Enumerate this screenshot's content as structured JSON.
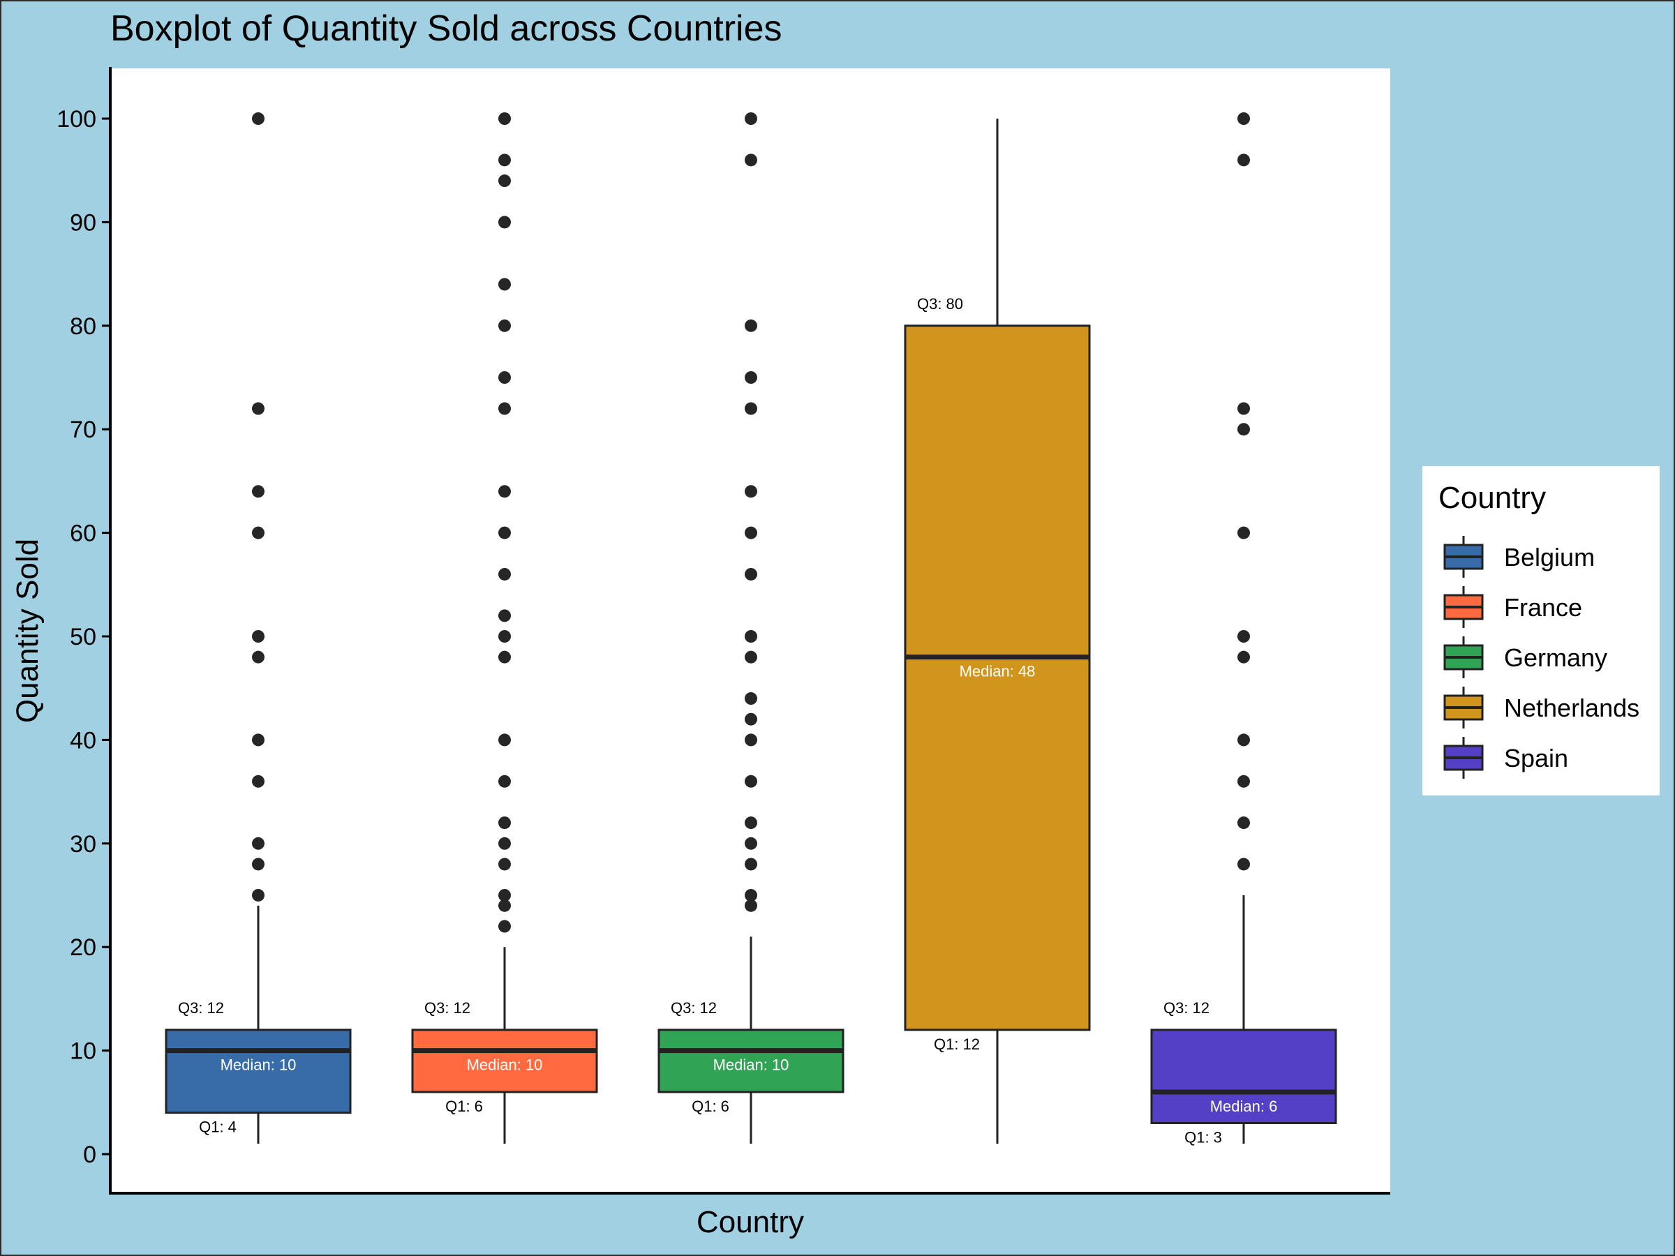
{
  "chart_data": {
    "type": "boxplot",
    "title": "Boxplot of Quantity Sold across Countries",
    "xlabel": "Country",
    "ylabel": "Quantity Sold",
    "ylim": [
      -4,
      105
    ],
    "yticks": [
      0,
      10,
      20,
      30,
      40,
      50,
      60,
      70,
      80,
      90,
      100
    ],
    "legend": {
      "title": "Country",
      "position": "right"
    },
    "background_color": "#a0d0e1",
    "panel_color": "#ffffff",
    "outline_color": "#222222",
    "series": [
      {
        "name": "Belgium",
        "color": "#386ca8",
        "min": 1,
        "q1": 4,
        "median": 10,
        "q3": 12,
        "max": 24,
        "q1_label": "Q1: 4",
        "median_label": "Median: 10",
        "q3_label": "Q3: 12",
        "outliers": [
          25,
          28,
          30,
          36,
          40,
          48,
          50,
          60,
          64,
          72,
          100
        ]
      },
      {
        "name": "France",
        "color": "#ff6a40",
        "min": 1,
        "q1": 6,
        "median": 10,
        "q3": 12,
        "max": 20,
        "q1_label": "Q1: 6",
        "median_label": "Median: 10",
        "q3_label": "Q3: 12",
        "outliers": [
          22,
          24,
          25,
          28,
          30,
          32,
          36,
          40,
          48,
          50,
          52,
          56,
          60,
          64,
          72,
          75,
          80,
          84,
          90,
          94,
          96,
          100
        ]
      },
      {
        "name": "Germany",
        "color": "#31a354",
        "min": 1,
        "q1": 6,
        "median": 10,
        "q3": 12,
        "max": 21,
        "q1_label": "Q1: 6",
        "median_label": "Median: 10",
        "q3_label": "Q3: 12",
        "outliers": [
          24,
          25,
          28,
          30,
          32,
          36,
          40,
          42,
          44,
          48,
          50,
          56,
          60,
          64,
          72,
          75,
          80,
          96,
          100
        ]
      },
      {
        "name": "Netherlands",
        "color": "#d1951d",
        "min": 1,
        "q1": 12,
        "median": 48,
        "q3": 80,
        "max": 100,
        "q1_label": "Q1: 12",
        "median_label": "Median: 48",
        "q3_label": "Q3: 80",
        "outliers": []
      },
      {
        "name": "Spain",
        "color": "#5440c6",
        "min": 1,
        "q1": 3,
        "median": 6,
        "q3": 12,
        "max": 25,
        "q1_label": "Q1: 3",
        "median_label": "Median: 6",
        "q3_label": "Q3: 12",
        "outliers": [
          28,
          32,
          36,
          40,
          48,
          50,
          60,
          70,
          72,
          96,
          100
        ]
      }
    ]
  }
}
